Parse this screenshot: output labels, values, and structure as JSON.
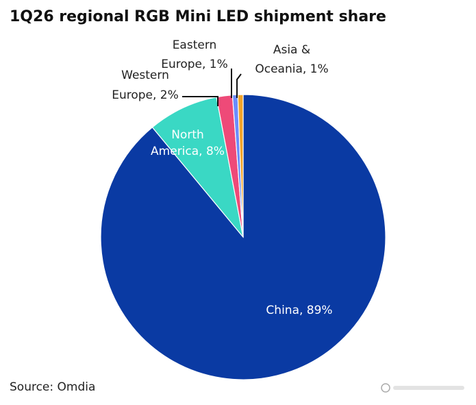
{
  "title": "1Q26 regional RGB Mini LED shipment share",
  "source": "Source: Omdia",
  "chart_data": {
    "type": "pie",
    "title": "1Q26 regional RGB Mini LED shipment share",
    "slices": [
      {
        "name": "China",
        "value": 89,
        "color": "#0a3aa3",
        "label_lines": [
          "China, 89%"
        ],
        "label_color": "#ffffff"
      },
      {
        "name": "North America",
        "value": 8,
        "color": "#3ad8c4",
        "label_lines": [
          "North",
          "America, 8%"
        ],
        "label_color": "#ffffff"
      },
      {
        "name": "Western Europe",
        "value": 1.8,
        "color": "#ee4a78",
        "label_lines": [
          "Western",
          "Europe, 2%"
        ],
        "label_color": "#222222"
      },
      {
        "name": "Eastern Europe",
        "value": 0.6,
        "color": "#6b8cff",
        "label_lines": [
          "Eastern",
          "Europe, 1%"
        ],
        "label_color": "#222222"
      },
      {
        "name": "Asia & Oceania",
        "value": 0.6,
        "color": "#f2a42a",
        "label_lines": [
          "Asia &",
          "Oceania, 1%"
        ],
        "label_color": "#222222"
      }
    ]
  }
}
